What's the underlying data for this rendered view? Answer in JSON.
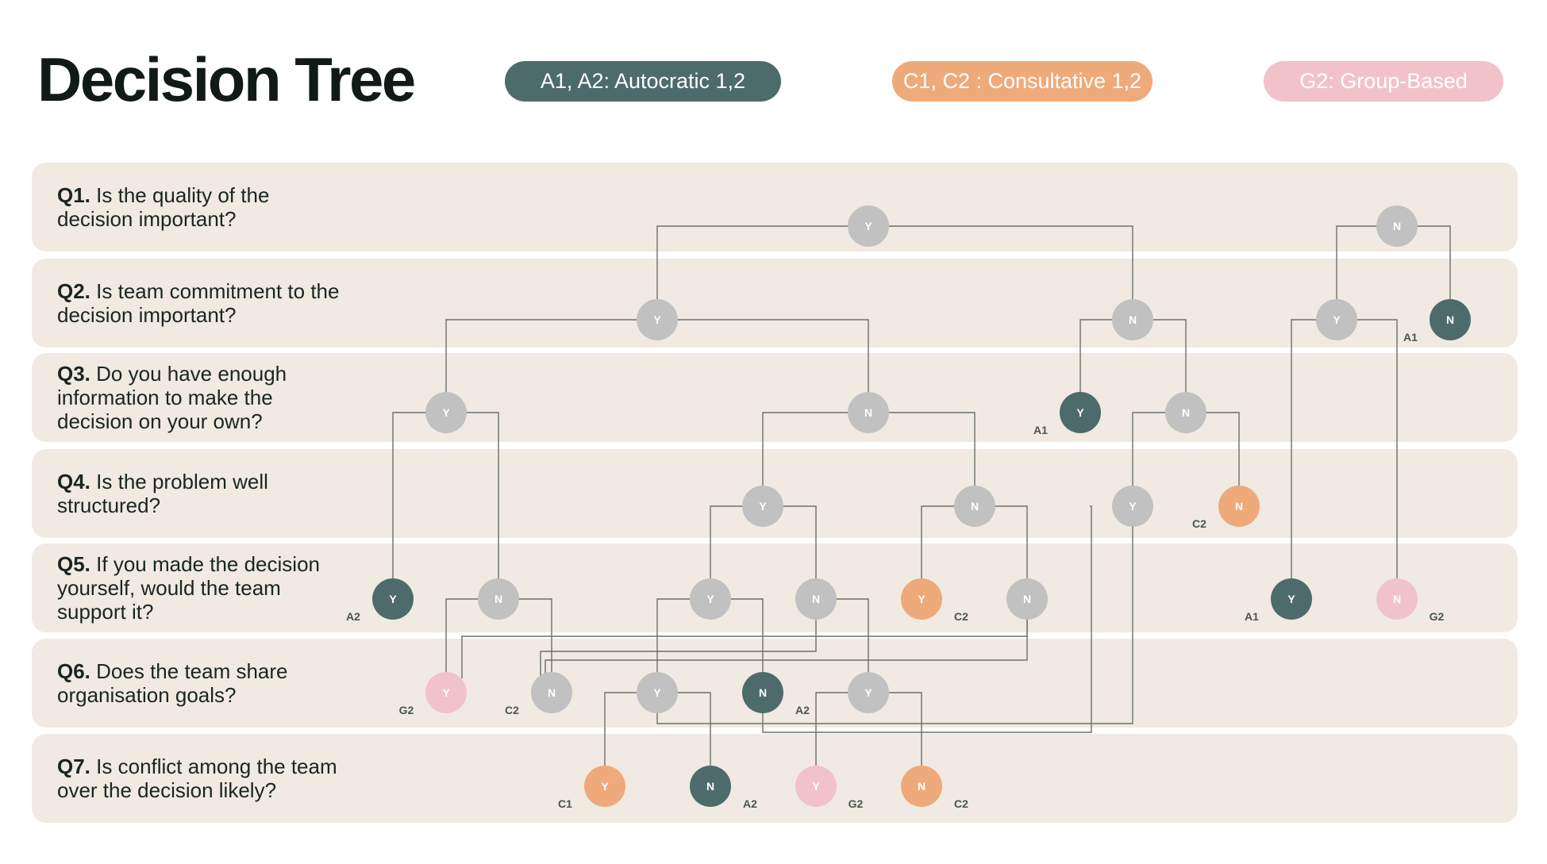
{
  "title": "Decision Tree",
  "legend": [
    {
      "label": "A1, A2: Autocratic 1,2",
      "color": "#4d6b6a"
    },
    {
      "label": "C1, C2 : Consultative 1,2",
      "color": "#eeaa7b"
    },
    {
      "label": "G2: Group-Based",
      "color": "#f1c3c9"
    }
  ],
  "questions": [
    {
      "num": "Q1.",
      "text": "Is the quality of the decision important?"
    },
    {
      "num": "Q2.",
      "text": "Is team commitment to the decision important?"
    },
    {
      "num": "Q3.",
      "text": "Do you have enough information to make the decision on your own?"
    },
    {
      "num": "Q4.",
      "text": "Is the problem well structured?"
    },
    {
      "num": "Q5.",
      "text": "If you made the decision yourself, would the team support it?"
    },
    {
      "num": "Q6.",
      "text": "Does the team share organisation goals?"
    },
    {
      "num": "Q7.",
      "text": "Is conflict among the team over the decision likely?"
    }
  ],
  "colors": {
    "neutral": "#c1c1c1",
    "autocratic": "#4d6b6a",
    "consultative": "#eeaa7b",
    "group": "#f1c3c9",
    "line": "#6b6f6e",
    "outcome_label": "#4a5553"
  },
  "nodes": [
    {
      "id": "q1y",
      "answer": "Y",
      "question": 1,
      "type": "neutral"
    },
    {
      "id": "q1n",
      "answer": "N",
      "question": 1,
      "type": "neutral"
    },
    {
      "id": "q2y",
      "answer": "Y",
      "question": 2,
      "type": "neutral"
    },
    {
      "id": "q2n",
      "answer": "N",
      "question": 2,
      "type": "neutral"
    },
    {
      "id": "q2y_r",
      "answer": "Y",
      "question": 2,
      "type": "neutral"
    },
    {
      "id": "q2n_r",
      "answer": "N",
      "question": 2,
      "type": "autocratic",
      "outcome": "A1"
    },
    {
      "id": "q3y",
      "answer": "Y",
      "question": 3,
      "type": "neutral"
    },
    {
      "id": "q3n",
      "answer": "N",
      "question": 3,
      "type": "neutral"
    },
    {
      "id": "q3y_m",
      "answer": "Y",
      "question": 3,
      "type": "autocratic",
      "outcome": "A1"
    },
    {
      "id": "q3n_m",
      "answer": "N",
      "question": 3,
      "type": "neutral"
    },
    {
      "id": "q4y",
      "answer": "Y",
      "question": 4,
      "type": "neutral"
    },
    {
      "id": "q4n",
      "answer": "N",
      "question": 4,
      "type": "neutral"
    },
    {
      "id": "q4y_m",
      "answer": "Y",
      "question": 4,
      "type": "neutral"
    },
    {
      "id": "q4n_m",
      "answer": "N",
      "question": 4,
      "type": "consultative",
      "outcome": "C2"
    },
    {
      "id": "q5y_a",
      "answer": "Y",
      "question": 5,
      "type": "autocratic",
      "outcome": "A2"
    },
    {
      "id": "q5n_a",
      "answer": "N",
      "question": 5,
      "type": "neutral"
    },
    {
      "id": "q5y_b",
      "answer": "Y",
      "question": 5,
      "type": "neutral"
    },
    {
      "id": "q5n_b",
      "answer": "N",
      "question": 5,
      "type": "neutral"
    },
    {
      "id": "q5y_c",
      "answer": "Y",
      "question": 5,
      "type": "consultative",
      "outcome": "C2"
    },
    {
      "id": "q5n_c",
      "answer": "N",
      "question": 5,
      "type": "neutral"
    },
    {
      "id": "q5y_r",
      "answer": "Y",
      "question": 5,
      "type": "autocratic",
      "outcome": "A1"
    },
    {
      "id": "q5n_r",
      "answer": "N",
      "question": 5,
      "type": "group",
      "outcome": "G2"
    },
    {
      "id": "q6y_a",
      "answer": "Y",
      "question": 6,
      "type": "group",
      "outcome": "G2"
    },
    {
      "id": "q6n_a",
      "answer": "N",
      "question": 6,
      "type": "neutral",
      "outcome": "C2"
    },
    {
      "id": "q6y_b",
      "answer": "Y",
      "question": 6,
      "type": "neutral"
    },
    {
      "id": "q6n_b",
      "answer": "N",
      "question": 6,
      "type": "autocratic",
      "outcome": "A2"
    },
    {
      "id": "q6y_c",
      "answer": "Y",
      "question": 6,
      "type": "neutral"
    },
    {
      "id": "q7y_a",
      "answer": "Y",
      "question": 7,
      "type": "consultative",
      "outcome": "C1"
    },
    {
      "id": "q7n_a",
      "answer": "N",
      "question": 7,
      "type": "autocratic",
      "outcome": "A2"
    },
    {
      "id": "q7y_b",
      "answer": "Y",
      "question": 7,
      "type": "group",
      "outcome": "G2"
    },
    {
      "id": "q7n_b",
      "answer": "N",
      "question": 7,
      "type": "consultative",
      "outcome": "C2"
    }
  ]
}
